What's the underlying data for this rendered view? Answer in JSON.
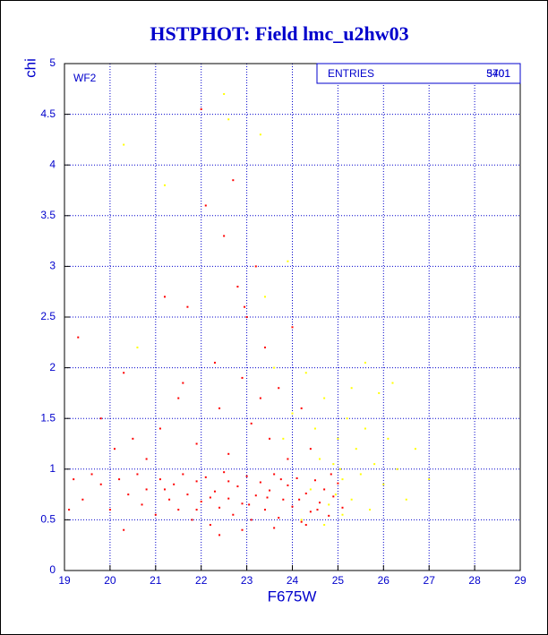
{
  "chart_data": {
    "type": "scatter",
    "title": "HSTPHOT: Field lmc_u2hw03",
    "x_label": "F675W",
    "y_label": "chi",
    "annotation": "WF2",
    "entries_label": "ENTRIES",
    "entries": [
      5401,
      3701
    ],
    "xlim": [
      19,
      29
    ],
    "ylim": [
      0,
      5
    ],
    "xticks": [
      19,
      20,
      21,
      22,
      23,
      24,
      25,
      26,
      27,
      28,
      29
    ],
    "yticks": [
      0,
      0.5,
      1,
      1.5,
      2,
      2.5,
      3,
      3.5,
      4,
      4.5,
      5
    ],
    "grid": true,
    "series": [
      {
        "color": "#ff0000",
        "x": [
          19.2,
          19.4,
          19.6,
          19.8,
          20.0,
          20.2,
          20.4,
          20.6,
          20.8,
          21.0,
          21.1,
          21.3,
          21.4,
          21.5,
          21.6,
          21.7,
          21.8,
          21.9,
          22.0,
          22.1,
          22.2,
          22.3,
          22.4,
          22.5,
          22.6,
          22.7,
          22.8,
          22.9,
          23.0,
          23.1,
          23.2,
          23.3,
          23.4,
          23.5,
          23.6,
          23.7,
          23.8,
          23.9,
          24.0,
          24.1,
          24.2,
          24.3,
          24.4,
          24.5,
          24.6,
          24.7,
          24.8,
          24.9,
          25.0,
          25.1,
          21.2,
          21.9,
          22.2,
          22.6,
          23.05,
          23.45,
          23.75,
          24.15,
          24.55,
          24.85,
          22.9,
          23.6,
          24.3,
          22.4,
          20.7,
          19.1,
          19.3,
          19.8,
          20.1,
          20.3,
          20.5,
          20.8,
          21.1,
          21.2,
          21.5,
          21.7,
          21.9,
          22.0,
          22.1,
          22.3,
          22.4,
          22.5,
          22.6,
          22.8,
          22.9,
          23.0,
          23.1,
          23.2,
          23.3,
          23.4,
          23.5,
          23.7,
          23.9,
          24.0,
          24.2,
          24.4,
          22.7,
          20.3,
          21.6,
          22.95
        ],
        "y": [
          0.9,
          0.7,
          0.95,
          0.85,
          0.6,
          0.9,
          0.75,
          0.95,
          0.8,
          0.55,
          0.9,
          0.7,
          0.85,
          0.6,
          0.95,
          0.75,
          0.5,
          0.88,
          0.68,
          0.92,
          0.45,
          0.78,
          0.62,
          0.97,
          0.71,
          0.55,
          0.83,
          0.66,
          0.93,
          0.5,
          0.74,
          0.87,
          0.6,
          0.79,
          0.95,
          0.52,
          0.7,
          0.84,
          0.63,
          0.91,
          0.48,
          0.76,
          0.58,
          0.89,
          0.67,
          0.8,
          0.54,
          0.73,
          0.86,
          0.62,
          0.8,
          0.6,
          0.72,
          0.88,
          0.65,
          0.72,
          0.9,
          0.7,
          0.6,
          0.95,
          0.4,
          0.42,
          0.45,
          0.35,
          0.65,
          0.6,
          2.3,
          1.5,
          1.2,
          1.95,
          1.3,
          1.1,
          1.4,
          2.7,
          1.7,
          2.6,
          1.25,
          4.55,
          3.6,
          2.05,
          1.6,
          3.3,
          1.15,
          2.8,
          1.9,
          2.5,
          1.45,
          3.0,
          1.7,
          2.2,
          1.3,
          1.8,
          1.1,
          2.4,
          1.6,
          1.2,
          3.85,
          0.4,
          1.85,
          2.6
        ]
      },
      {
        "color": "#ffff00",
        "x": [
          24.2,
          24.4,
          24.6,
          24.8,
          25.0,
          25.1,
          25.2,
          25.3,
          25.4,
          25.5,
          25.6,
          25.7,
          25.8,
          25.9,
          26.0,
          26.1,
          26.3,
          26.5,
          26.7,
          27.0,
          24.5,
          24.7,
          24.9,
          23.8,
          24.0,
          23.6,
          23.3,
          22.5,
          21.2,
          20.3,
          20.6,
          22.6,
          23.4,
          23.9,
          24.3,
          25.3,
          25.6,
          26.2,
          25.1,
          24.7,
          24.95,
          25.05
        ],
        "y": [
          0.5,
          0.8,
          1.1,
          0.65,
          1.3,
          0.9,
          1.5,
          0.7,
          1.2,
          0.95,
          1.4,
          0.6,
          1.05,
          1.75,
          0.85,
          1.3,
          1.0,
          0.7,
          1.2,
          0.9,
          1.4,
          1.7,
          1.05,
          1.3,
          1.55,
          2.0,
          4.3,
          4.7,
          3.8,
          4.2,
          2.2,
          4.45,
          2.7,
          3.05,
          1.95,
          1.8,
          2.05,
          1.85,
          0.55,
          0.45,
          0.75,
          1.0
        ]
      }
    ]
  }
}
